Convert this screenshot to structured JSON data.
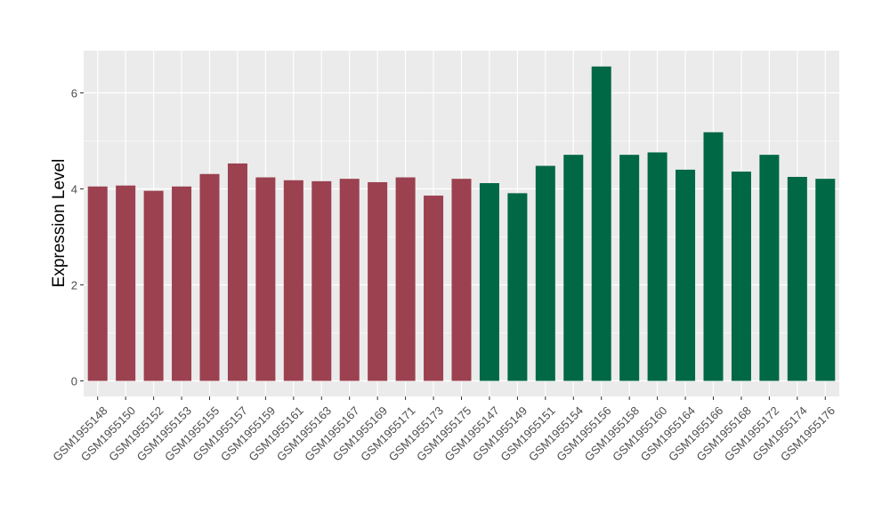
{
  "chart_data": {
    "type": "bar",
    "title": "",
    "xlabel": "",
    "ylabel": "Expression Level",
    "ylim": [
      0,
      6.8
    ],
    "yticks": [
      0,
      2,
      4,
      6
    ],
    "grid": true,
    "categories": [
      "GSM1955148",
      "GSM1955150",
      "GSM1955152",
      "GSM1955153",
      "GSM1955155",
      "GSM1955157",
      "GSM1955159",
      "GSM1955161",
      "GSM1955163",
      "GSM1955167",
      "GSM1955169",
      "GSM1955171",
      "GSM1955173",
      "GSM1955175",
      "GSM1955147",
      "GSM1955149",
      "GSM1955151",
      "GSM1955154",
      "GSM1955156",
      "GSM1955158",
      "GSM1955160",
      "GSM1955164",
      "GSM1955166",
      "GSM1955168",
      "GSM1955172",
      "GSM1955174",
      "GSM1955176"
    ],
    "values": [
      4.05,
      4.07,
      3.96,
      4.05,
      4.31,
      4.53,
      4.24,
      4.18,
      4.16,
      4.21,
      4.14,
      4.24,
      3.86,
      4.21,
      4.12,
      3.91,
      4.48,
      4.71,
      6.55,
      4.71,
      4.76,
      4.4,
      5.18,
      4.36,
      4.71,
      4.25,
      4.21
    ],
    "group_colors": [
      "#9b4150",
      "#9b4150",
      "#9b4150",
      "#9b4150",
      "#9b4150",
      "#9b4150",
      "#9b4150",
      "#9b4150",
      "#9b4150",
      "#9b4150",
      "#9b4150",
      "#9b4150",
      "#9b4150",
      "#9b4150",
      "#006845",
      "#006845",
      "#006845",
      "#006845",
      "#006845",
      "#006845",
      "#006845",
      "#006845",
      "#006845",
      "#006845",
      "#006845",
      "#006845",
      "#006845"
    ],
    "panel_background": "#ebebeb",
    "grid_color": "#ffffff"
  }
}
